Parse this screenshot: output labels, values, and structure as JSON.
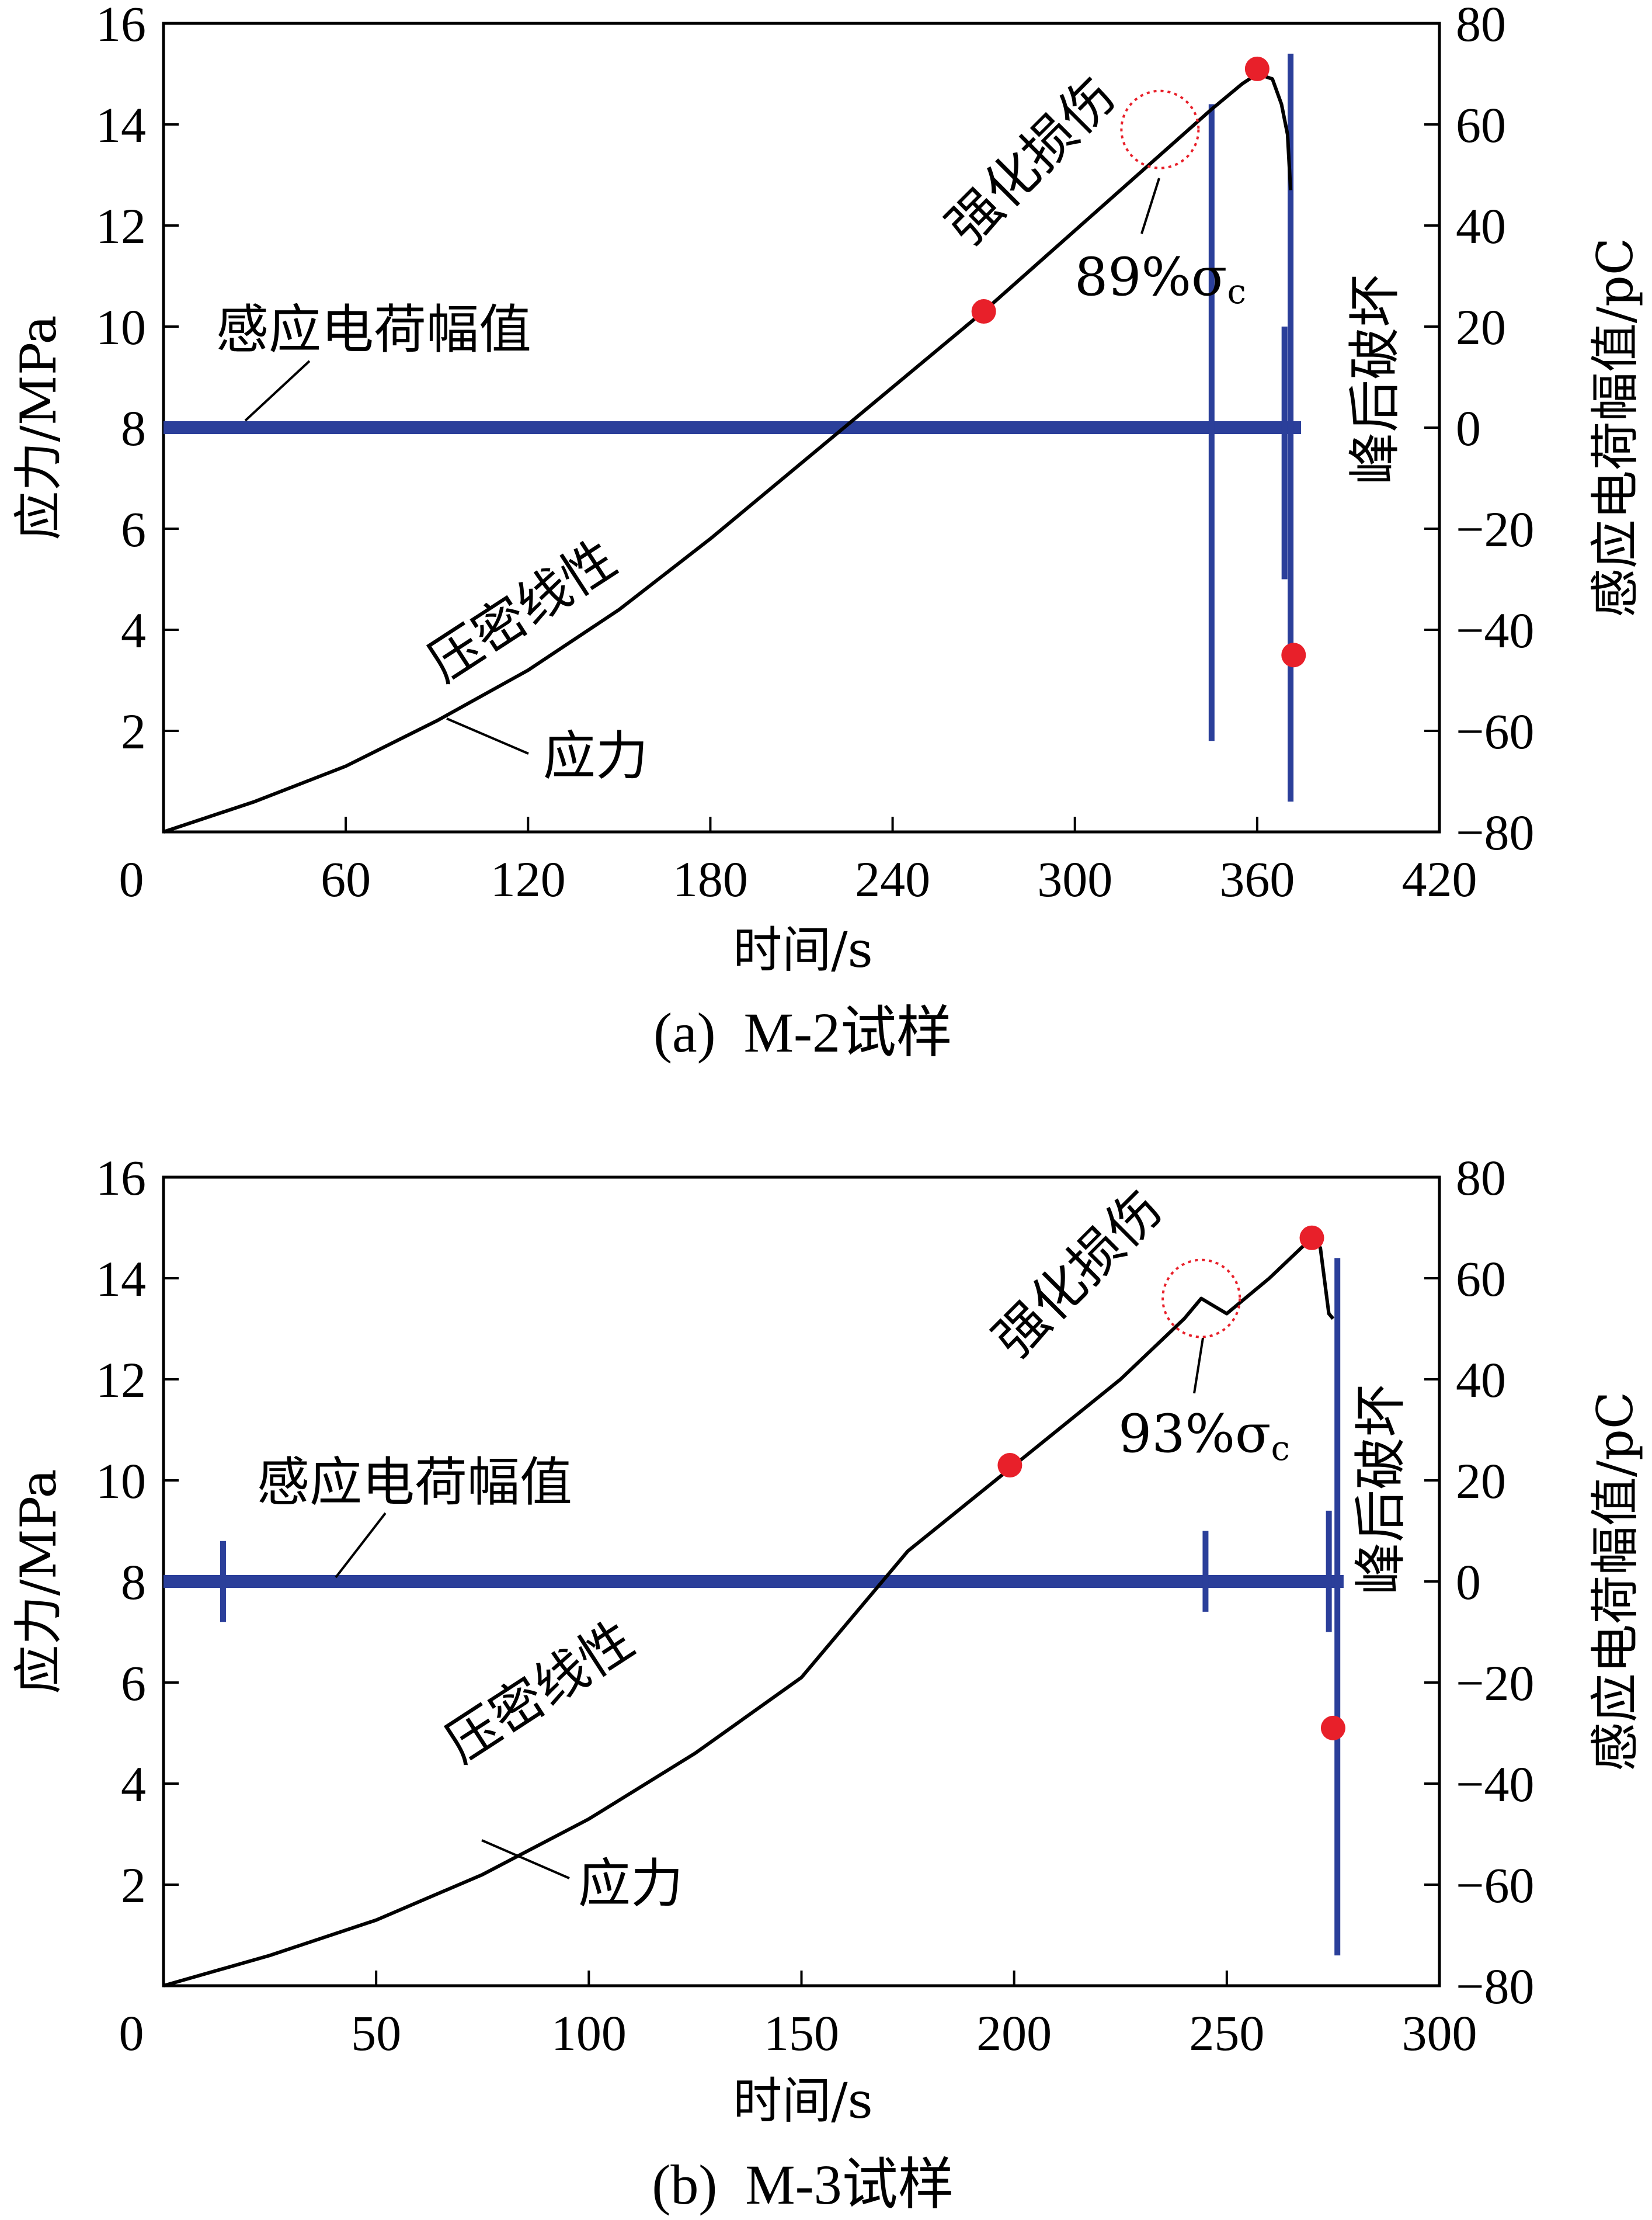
{
  "colors": {
    "stress": "#000000",
    "charge": "#2b3f9a",
    "marker": "#e8202a",
    "circle": "#e8202a"
  },
  "chart_data": [
    {
      "type": "line",
      "caption": "(a)  M-2试样",
      "xlabel": "时间/s",
      "ylabel": "应力/MPa",
      "y2label": "感应电荷幅值/pC",
      "xlim": [
        0,
        420
      ],
      "ylim": [
        0,
        16
      ],
      "y2lim": [
        -80,
        80
      ],
      "xticks": [
        "0",
        "60",
        "120",
        "180",
        "240",
        "300",
        "360",
        "420"
      ],
      "yticks": [
        "2",
        "4",
        "6",
        "8",
        "10",
        "12",
        "14",
        "16"
      ],
      "y2ticks": [
        "80",
        "60",
        "40",
        "20",
        "0",
        "−20",
        "−40",
        "−60",
        "−80"
      ],
      "series": [
        {
          "name": "应力",
          "axis": "left",
          "x": [
            0,
            30,
            60,
            90,
            120,
            150,
            180,
            210,
            240,
            270,
            300,
            330,
            345,
            355,
            360,
            365,
            368,
            370,
            371
          ],
          "y": [
            0,
            0.6,
            1.3,
            2.2,
            3.2,
            4.4,
            5.8,
            7.3,
            8.8,
            10.3,
            11.9,
            13.5,
            14.3,
            14.8,
            15.0,
            14.9,
            14.4,
            13.8,
            12.7
          ]
        },
        {
          "name": "感应电荷幅值",
          "axis": "right",
          "baseline": 0,
          "spikes": [
            {
              "x": 345,
              "min": -62,
              "max": 64
            },
            {
              "x": 371,
              "min": -74,
              "max": 74
            },
            {
              "x": 369,
              "min": -30,
              "max": 20
            }
          ]
        }
      ],
      "markers": [
        {
          "x": 270,
          "y": 10.3
        },
        {
          "x": 360,
          "y": 15.1
        },
        {
          "x": 372,
          "y": 3.5
        }
      ],
      "annotations": {
        "charge_label": "感应电荷幅值",
        "stress_label": "应力",
        "region_linear": "压密线性",
        "region_damage": "强化损伤",
        "region_post_peak": "峰后破坏",
        "peak_ratio_num": "89%",
        "peak_ratio_sym": "σ",
        "peak_ratio_sub": "c",
        "circle_x": 328,
        "circle_y": 13.9
      }
    },
    {
      "type": "line",
      "caption": "(b)  M-3试样",
      "xlabel": "时间/s",
      "ylabel": "应力/MPa",
      "y2label": "感应电荷幅值/pC",
      "xlim": [
        0,
        300
      ],
      "ylim": [
        0,
        16
      ],
      "y2lim": [
        -80,
        80
      ],
      "xticks": [
        "0",
        "50",
        "100",
        "150",
        "200",
        "250",
        "300"
      ],
      "yticks": [
        "2",
        "4",
        "6",
        "8",
        "10",
        "12",
        "14",
        "16"
      ],
      "y2ticks": [
        "80",
        "60",
        "40",
        "20",
        "0",
        "−20",
        "−40",
        "−60",
        "−80"
      ],
      "series": [
        {
          "name": "应力",
          "axis": "left",
          "x": [
            0,
            25,
            50,
            75,
            100,
            125,
            150,
            175,
            200,
            225,
            240,
            244,
            246,
            250,
            260,
            270,
            272,
            274,
            275
          ],
          "y": [
            0,
            0.6,
            1.3,
            2.2,
            3.3,
            4.6,
            6.1,
            8.6,
            10.3,
            12.0,
            13.2,
            13.6,
            13.5,
            13.3,
            14.0,
            14.8,
            14.6,
            13.3,
            13.2
          ]
        },
        {
          "name": "感应电荷幅值",
          "axis": "right",
          "baseline": 0,
          "spikes": [
            {
              "x": 14,
              "min": -8,
              "max": 8
            },
            {
              "x": 245,
              "min": -6,
              "max": 10
            },
            {
              "x": 274,
              "min": -10,
              "max": 14
            },
            {
              "x": 276,
              "min": -74,
              "max": 64
            }
          ]
        }
      ],
      "markers": [
        {
          "x": 199,
          "y": 10.3
        },
        {
          "x": 270,
          "y": 14.8
        },
        {
          "x": 275,
          "y": 5.1
        }
      ],
      "annotations": {
        "charge_label": "感应电荷幅值",
        "stress_label": "应力",
        "region_linear": "压密线性",
        "region_damage": "强化损伤",
        "region_post_peak": "峰后破坏",
        "peak_ratio_num": "93%",
        "peak_ratio_sym": "σ",
        "peak_ratio_sub": "c",
        "circle_x": 244,
        "circle_y": 13.6
      }
    }
  ]
}
